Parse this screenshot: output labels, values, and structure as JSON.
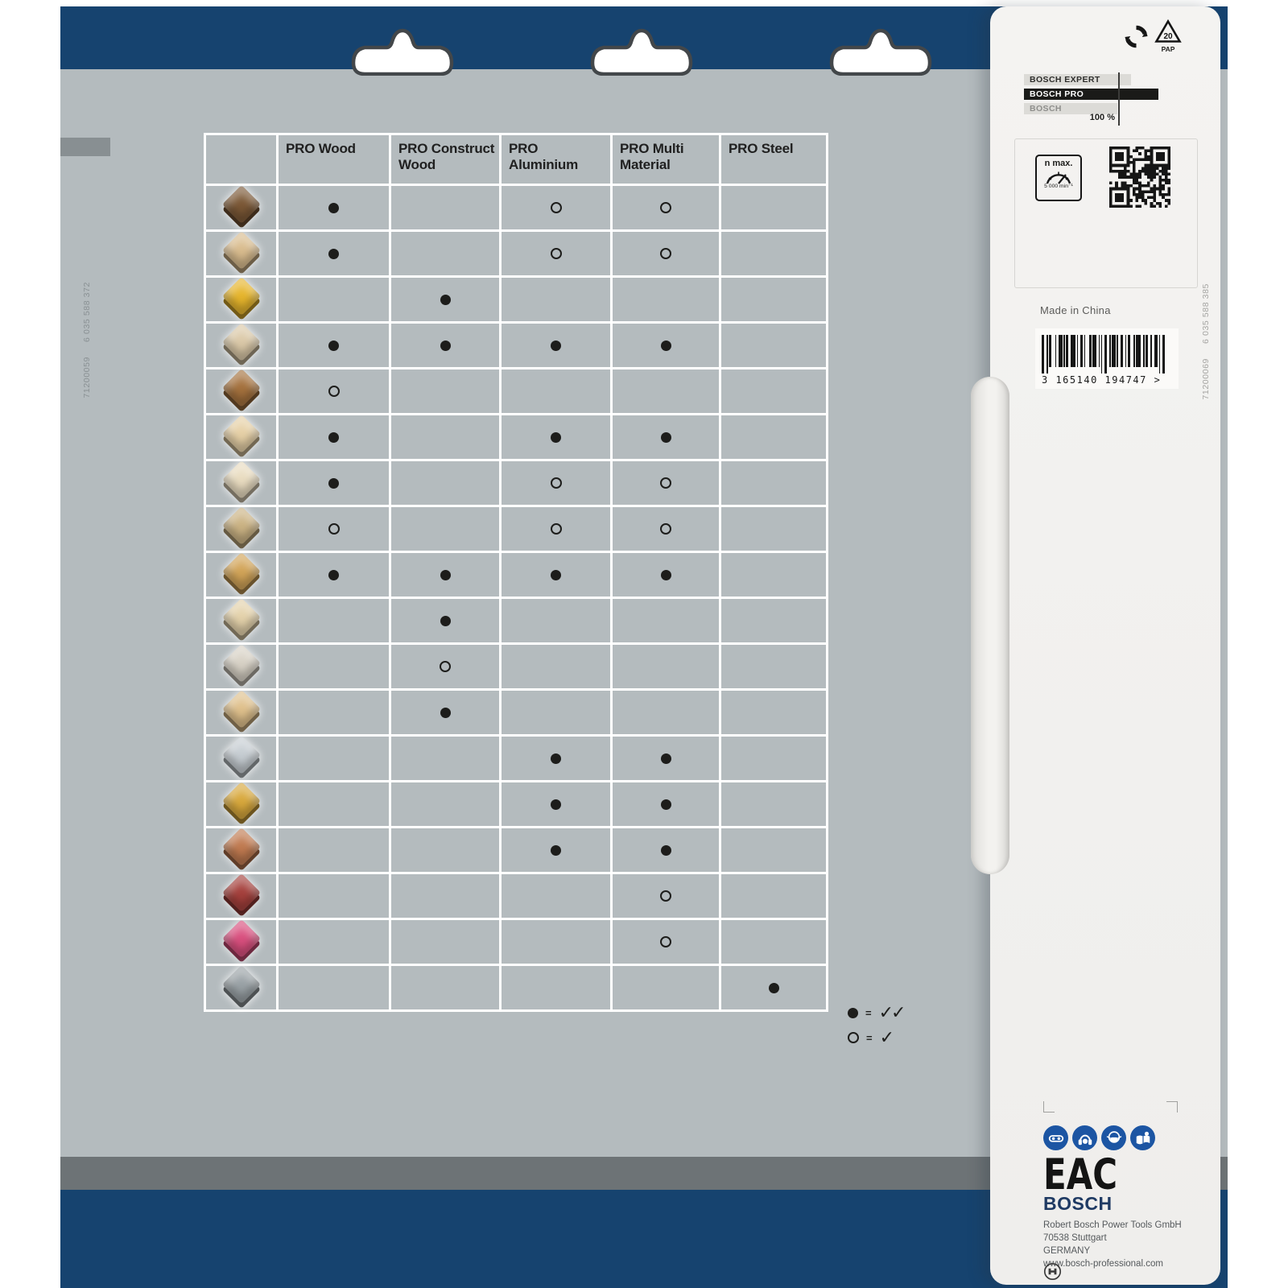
{
  "colors": {
    "navy": "#16436f",
    "body_gray": "#b4bbbe",
    "band_gray": "#6d7376",
    "panel_bg": "#f2f1ee",
    "safety_blue": "#1c55a3",
    "ink": "#1d1d1b"
  },
  "card": {
    "codes_left": [
      "6 035 588 372",
      "71200059"
    ]
  },
  "table": {
    "columns": [
      "PRO Wood",
      "PRO Construct Wood",
      "PRO Aluminium",
      "PRO Multi Material",
      "PRO Steel"
    ],
    "rows": [
      {
        "material": "solid-hardwood",
        "color": "#7b5836",
        "marks": [
          "full",
          "",
          "open",
          "open",
          ""
        ]
      },
      {
        "material": "sawn-softwood-planks",
        "color": "#d9bc8e",
        "marks": [
          "full",
          "",
          "open",
          "open",
          ""
        ]
      },
      {
        "material": "glue-laminated-timber",
        "color": "#e6b52c",
        "marks": [
          "",
          "full",
          "",
          "",
          ""
        ]
      },
      {
        "material": "chipboard",
        "color": "#dbc9a8",
        "marks": [
          "full",
          "full",
          "full",
          "full",
          ""
        ]
      },
      {
        "material": "parquet-floorboards",
        "color": "#a4713d",
        "marks": [
          "open",
          "",
          "",
          "",
          ""
        ]
      },
      {
        "material": "mdf-board",
        "color": "#e6d0a6",
        "marks": [
          "full",
          "",
          "full",
          "full",
          ""
        ]
      },
      {
        "material": "thin-board-stack",
        "color": "#e9dcc0",
        "marks": [
          "full",
          "",
          "open",
          "open",
          ""
        ]
      },
      {
        "material": "laminate-flooring",
        "color": "#cbb384",
        "marks": [
          "open",
          "",
          "open",
          "open",
          ""
        ]
      },
      {
        "material": "osb-board",
        "color": "#d2a458",
        "marks": [
          "full",
          "full",
          "full",
          "full",
          ""
        ]
      },
      {
        "material": "formwork-planks",
        "color": "#e4d2ab",
        "marks": [
          "",
          "full",
          "",
          "",
          ""
        ]
      },
      {
        "material": "nailed-crate-wood",
        "color": "#d8d2c6",
        "marks": [
          "",
          "open",
          "",
          "",
          ""
        ]
      },
      {
        "material": "nailed-board",
        "color": "#dfc08c",
        "marks": [
          "",
          "full",
          "",
          "",
          ""
        ]
      },
      {
        "material": "aluminium-profiles",
        "color": "#c6cdd2",
        "marks": [
          "",
          "",
          "full",
          "full",
          ""
        ]
      },
      {
        "material": "plastic-pipes-profiles",
        "color": "#d8a83c",
        "marks": [
          "",
          "",
          "full",
          "full",
          ""
        ]
      },
      {
        "material": "copper-pipes-fittings",
        "color": "#c07a50",
        "marks": [
          "",
          "",
          "full",
          "full",
          ""
        ]
      },
      {
        "material": "composite-panel-red",
        "color": "#a5403c",
        "marks": [
          "",
          "",
          "",
          "open",
          ""
        ]
      },
      {
        "material": "solid-laminate-pink",
        "color": "#d94f7e",
        "marks": [
          "",
          "",
          "",
          "open",
          ""
        ]
      },
      {
        "material": "steel-profiles",
        "color": "#9aa2a6",
        "marks": [
          "",
          "",
          "",
          "",
          "full"
        ]
      }
    ],
    "legend": [
      {
        "mark": "full",
        "meaning": "✓✓"
      },
      {
        "mark": "open",
        "meaning": "✓"
      }
    ]
  },
  "panel": {
    "recycling": {
      "pap_code": "20",
      "pap_label": "PAP"
    },
    "tiers": [
      {
        "label": "BOSCH EXPERT",
        "style": "light"
      },
      {
        "label": "BOSCH PRO",
        "style": "dark"
      },
      {
        "label": "BOSCH",
        "style": "muted"
      }
    ],
    "scale": "100 %",
    "nmax": {
      "label": "n max.",
      "value": "5 000 min⁻¹"
    },
    "made_in": "Made in China",
    "barcode_digits": "3 165140 194747 >",
    "codes_right": [
      "6 035 588 385",
      "71200069"
    ],
    "eac": "EAC",
    "brand": "BOSCH",
    "address": [
      "Robert Bosch Power Tools GmbH",
      "70538 Stuttgart",
      "GERMANY",
      "www.bosch-professional.com"
    ]
  }
}
